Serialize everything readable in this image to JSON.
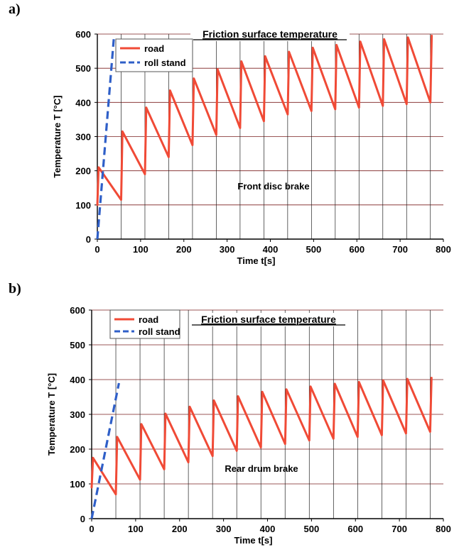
{
  "panels": [
    {
      "label": "a)"
    },
    {
      "label": "b)"
    }
  ],
  "colors": {
    "road": "#f04a36",
    "roll_stand": "#2f5fc8",
    "grid": "#7a1f1f",
    "axis": "#000000"
  },
  "chart_data": [
    {
      "type": "line",
      "title": "Friction surface temperature",
      "annotation": "Front disc brake",
      "xlabel": "Time t[s]",
      "ylabel": "Temperature T [°C]",
      "xlim": [
        0,
        800
      ],
      "ylim": [
        0,
        600
      ],
      "xticks": [
        "0",
        "100",
        "200",
        "300",
        "400",
        "500",
        "600",
        "700",
        "800"
      ],
      "yticks": [
        "0",
        "100",
        "200",
        "300",
        "400",
        "500",
        "600"
      ],
      "vgrid": [
        0,
        55,
        110,
        165,
        220,
        275,
        330,
        385,
        440,
        495,
        550,
        605,
        660,
        715,
        770
      ],
      "legend": {
        "placement": "top-left"
      },
      "series": [
        {
          "name": "road",
          "style": "solid",
          "x": [
            0,
            3,
            55,
            58,
            110,
            113,
            165,
            168,
            220,
            223,
            275,
            278,
            330,
            333,
            385,
            388,
            440,
            443,
            495,
            498,
            550,
            553,
            605,
            608,
            660,
            663,
            715,
            718,
            770,
            773
          ],
          "y": [
            100,
            210,
            115,
            315,
            190,
            385,
            240,
            435,
            275,
            470,
            305,
            497,
            325,
            520,
            345,
            535,
            365,
            548,
            375,
            560,
            380,
            568,
            385,
            578,
            390,
            585,
            395,
            590,
            400,
            595
          ]
        },
        {
          "name": "roll stand",
          "style": "dashed",
          "x": [
            0,
            38
          ],
          "y": [
            0,
            585
          ]
        }
      ]
    },
    {
      "type": "line",
      "title": "Friction surface temperature",
      "annotation": "Rear drum brake",
      "xlabel": "Time t[s]",
      "ylabel": "Temperature T [°C]",
      "xlim": [
        0,
        800
      ],
      "ylim": [
        0,
        600
      ],
      "xticks": [
        "0",
        "100",
        "200",
        "300",
        "400",
        "500",
        "600",
        "700",
        "800"
      ],
      "yticks": [
        "0",
        "100",
        "200",
        "300",
        "400",
        "500",
        "600"
      ],
      "vgrid": [
        0,
        55,
        110,
        165,
        220,
        275,
        330,
        385,
        440,
        495,
        550,
        605,
        660,
        715,
        770
      ],
      "legend": {
        "placement": "top-left"
      },
      "series": [
        {
          "name": "road",
          "style": "solid",
          "x": [
            0,
            3,
            55,
            58,
            110,
            113,
            165,
            168,
            220,
            223,
            275,
            278,
            330,
            333,
            385,
            388,
            440,
            443,
            495,
            498,
            550,
            553,
            605,
            608,
            660,
            663,
            715,
            718,
            770,
            773
          ],
          "y": [
            90,
            175,
            70,
            235,
            112,
            272,
            142,
            302,
            162,
            322,
            180,
            340,
            195,
            352,
            205,
            365,
            215,
            372,
            225,
            380,
            230,
            388,
            235,
            393,
            240,
            398,
            245,
            402,
            250,
            405
          ]
        },
        {
          "name": "roll stand",
          "style": "dashed",
          "x": [
            0,
            62
          ],
          "y": [
            0,
            390
          ]
        }
      ]
    }
  ]
}
